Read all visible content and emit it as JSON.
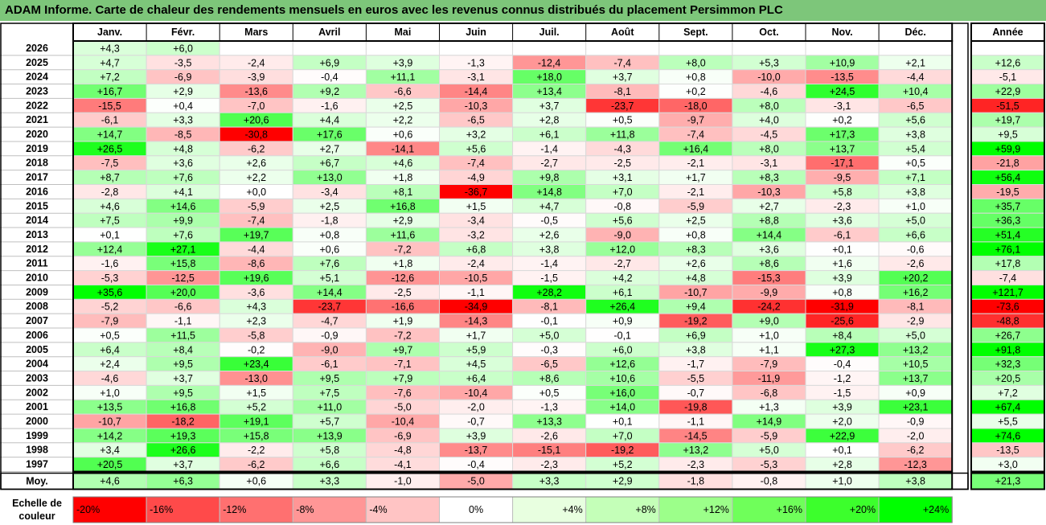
{
  "title": "ADAM Informe. Carte de chaleur des rendements mensuels en euros avec les revenus connus distribués du placement Persimmon PLC",
  "chart_data": {
    "type": "heatmap",
    "columns": [
      "Janv.",
      "Févr.",
      "Mars",
      "Avril",
      "Mai",
      "Juin",
      "Juil.",
      "Août",
      "Sept.",
      "Oct.",
      "Nov.",
      "Déc."
    ],
    "year_column_label": "Année",
    "rows": [
      {
        "label": "2026",
        "values": [
          "+4,3",
          "+6,0",
          "",
          "",
          "",
          "",
          "",
          "",
          "",
          "",
          "",
          ""
        ],
        "year": ""
      },
      {
        "label": "2025",
        "values": [
          "+4,7",
          "-3,5",
          "-2,4",
          "+6,9",
          "+3,9",
          "-1,3",
          "-12,4",
          "-7,4",
          "+8,0",
          "+5,3",
          "+10,9",
          "+2,1"
        ],
        "year": "+12,6"
      },
      {
        "label": "2024",
        "values": [
          "+7,2",
          "-6,9",
          "-3,9",
          "-0,4",
          "+11,1",
          "-3,1",
          "+18,0",
          "+3,7",
          "+0,8",
          "-10,0",
          "-13,5",
          "-4,4"
        ],
        "year": "-5,1"
      },
      {
        "label": "2023",
        "values": [
          "+16,7",
          "+2,9",
          "-13,6",
          "+9,2",
          "-6,6",
          "-14,4",
          "+13,4",
          "-8,1",
          "+0,2",
          "-4,6",
          "+24,5",
          "+10,4"
        ],
        "year": "+22,9"
      },
      {
        "label": "2022",
        "values": [
          "-15,5",
          "+0,4",
          "-7,0",
          "-1,6",
          "+2,5",
          "-10,3",
          "+3,7",
          "-23,7",
          "-18,0",
          "+8,0",
          "-3,1",
          "-6,5"
        ],
        "year": "-51,5"
      },
      {
        "label": "2021",
        "values": [
          "-6,1",
          "+3,3",
          "+20,6",
          "+4,4",
          "+2,2",
          "-6,5",
          "+2,8",
          "+0,5",
          "-9,7",
          "+4,0",
          "+0,2",
          "+5,6"
        ],
        "year": "+19,7"
      },
      {
        "label": "2020",
        "values": [
          "+14,7",
          "-8,5",
          "-30,8",
          "+17,6",
          "+0,6",
          "+3,2",
          "+6,1",
          "+11,8",
          "-7,4",
          "-4,5",
          "+17,3",
          "+3,8"
        ],
        "year": "+9,5"
      },
      {
        "label": "2019",
        "values": [
          "+26,5",
          "+4,8",
          "-6,2",
          "+2,7",
          "-14,1",
          "+5,6",
          "-1,4",
          "-4,3",
          "+16,4",
          "+8,0",
          "+13,7",
          "+5,4"
        ],
        "year": "+59,9"
      },
      {
        "label": "2018",
        "values": [
          "-7,5",
          "+3,6",
          "+2,6",
          "+6,7",
          "+4,6",
          "-7,4",
          "-2,7",
          "-2,5",
          "-2,1",
          "-3,1",
          "-17,1",
          "+0,5"
        ],
        "year": "-21,8"
      },
      {
        "label": "2017",
        "values": [
          "+8,7",
          "+7,6",
          "+2,2",
          "+13,0",
          "+1,8",
          "-4,9",
          "+9,8",
          "+3,1",
          "+1,7",
          "+8,3",
          "-9,5",
          "+7,1"
        ],
        "year": "+56,4"
      },
      {
        "label": "2016",
        "values": [
          "-2,8",
          "+4,1",
          "+0,0",
          "-3,4",
          "+8,1",
          "-36,7",
          "+14,8",
          "+7,0",
          "-2,1",
          "-10,3",
          "+5,8",
          "+3,8"
        ],
        "year": "-19,5"
      },
      {
        "label": "2015",
        "values": [
          "+4,6",
          "+14,6",
          "-5,9",
          "+2,5",
          "+16,8",
          "+1,5",
          "+4,7",
          "-0,8",
          "-5,9",
          "+2,7",
          "-2,3",
          "+1,0"
        ],
        "year": "+35,7"
      },
      {
        "label": "2014",
        "values": [
          "+7,5",
          "+9,9",
          "-7,4",
          "-1,8",
          "+2,9",
          "-3,4",
          "-0,5",
          "+5,6",
          "+2,5",
          "+8,8",
          "+3,6",
          "+5,0"
        ],
        "year": "+36,3"
      },
      {
        "label": "2013",
        "values": [
          "+0,1",
          "+7,6",
          "+19,7",
          "+0,8",
          "+11,6",
          "-3,2",
          "+2,6",
          "-9,0",
          "+0,8",
          "+14,4",
          "-6,1",
          "+6,6"
        ],
        "year": "+51,4"
      },
      {
        "label": "2012",
        "values": [
          "+12,4",
          "+27,1",
          "-4,4",
          "+0,6",
          "-7,2",
          "+6,8",
          "+3,8",
          "+12,0",
          "+8,3",
          "+3,6",
          "+0,1",
          "-0,6"
        ],
        "year": "+76,1"
      },
      {
        "label": "2011",
        "values": [
          "-1,6",
          "+15,8",
          "-8,6",
          "+7,6",
          "+1,8",
          "-2,4",
          "-1,4",
          "-2,7",
          "+2,6",
          "+8,6",
          "+1,6",
          "-2,6"
        ],
        "year": "+17,8"
      },
      {
        "label": "2010",
        "values": [
          "-5,3",
          "-12,5",
          "+19,6",
          "+5,1",
          "-12,6",
          "-10,5",
          "-1,5",
          "+4,2",
          "+4,8",
          "-15,3",
          "+3,9",
          "+20,2"
        ],
        "year": "-7,4"
      },
      {
        "label": "2009",
        "values": [
          "+35,6",
          "+20,0",
          "-3,6",
          "+14,4",
          "-2,5",
          "-1,1",
          "+28,2",
          "+6,1",
          "-10,7",
          "-9,9",
          "+0,8",
          "+16,2"
        ],
        "year": "+121,7"
      },
      {
        "label": "2008",
        "values": [
          "-5,2",
          "-6,6",
          "+4,3",
          "-23,7",
          "-16,6",
          "-34,9",
          "-8,1",
          "+26,4",
          "+9,4",
          "-24,2",
          "-31,9",
          "-8,1"
        ],
        "year": "-73,6"
      },
      {
        "label": "2007",
        "values": [
          "-7,9",
          "-1,1",
          "+2,3",
          "-4,7",
          "+1,9",
          "-14,3",
          "-0,1",
          "+0,9",
          "-19,2",
          "+9,0",
          "-25,6",
          "-2,9"
        ],
        "year": "-48,8"
      },
      {
        "label": "2006",
        "values": [
          "+0,5",
          "+11,5",
          "-5,8",
          "-0,9",
          "-7,2",
          "+1,7",
          "+5,0",
          "-0,1",
          "+6,9",
          "+1,0",
          "+8,4",
          "+5,0"
        ],
        "year": "+26,7"
      },
      {
        "label": "2005",
        "values": [
          "+6,4",
          "+8,4",
          "-0,2",
          "-9,0",
          "+9,7",
          "+5,9",
          "-0,3",
          "+6,0",
          "+3,8",
          "+1,1",
          "+27,3",
          "+13,2"
        ],
        "year": "+91,8"
      },
      {
        "label": "2004",
        "values": [
          "+2,4",
          "+9,5",
          "+23,4",
          "-6,1",
          "-7,1",
          "+4,5",
          "-6,5",
          "+12,6",
          "-1,7",
          "-7,9",
          "-0,4",
          "+10,5"
        ],
        "year": "+32,3"
      },
      {
        "label": "2003",
        "values": [
          "-4,6",
          "+3,7",
          "-13,0",
          "+9,5",
          "+7,9",
          "+6,4",
          "+8,6",
          "+10,6",
          "-5,5",
          "-11,9",
          "-1,2",
          "+13,7"
        ],
        "year": "+20,5"
      },
      {
        "label": "2002",
        "values": [
          "+1,0",
          "+9,5",
          "+1,5",
          "+7,5",
          "-7,6",
          "-10,4",
          "+0,5",
          "+16,0",
          "-0,7",
          "-6,8",
          "-1,5",
          "+0,9"
        ],
        "year": "+7,2"
      },
      {
        "label": "2001",
        "values": [
          "+13,5",
          "+16,8",
          "+5,2",
          "+11,0",
          "-5,0",
          "-2,0",
          "-1,3",
          "+14,0",
          "-19,8",
          "+1,3",
          "+3,9",
          "+23,1"
        ],
        "year": "+67,4"
      },
      {
        "label": "2000",
        "values": [
          "-10,7",
          "-18,2",
          "+19,1",
          "+5,7",
          "-10,4",
          "-0,7",
          "+13,3",
          "+0,1",
          "-1,1",
          "+14,9",
          "+2,0",
          "-0,9"
        ],
        "year": "+5,5"
      },
      {
        "label": "1999",
        "values": [
          "+14,2",
          "+19,3",
          "+15,8",
          "+13,9",
          "-6,9",
          "+3,9",
          "-2,6",
          "+7,0",
          "-14,5",
          "-5,9",
          "+22,9",
          "-2,0"
        ],
        "year": "+74,6"
      },
      {
        "label": "1998",
        "values": [
          "+3,4",
          "+26,6",
          "-2,2",
          "+5,8",
          "-4,8",
          "-13,7",
          "-15,1",
          "-19,2",
          "+13,2",
          "+5,0",
          "+0,1",
          "-6,2"
        ],
        "year": "-13,5"
      },
      {
        "label": "1997",
        "values": [
          "+20,5",
          "+3,7",
          "-6,2",
          "+6,6",
          "-4,1",
          "-0,4",
          "-2,3",
          "+5,2",
          "-2,3",
          "-5,3",
          "+2,8",
          "-12,3"
        ],
        "year": "+3,0"
      }
    ],
    "average": {
      "label": "Moy.",
      "values": [
        "+4,6",
        "+6,3",
        "+0,6",
        "+3,3",
        "-1,0",
        "-5,0",
        "+3,3",
        "+2,9",
        "-1,8",
        "-0,8",
        "+1,0",
        "+3,8"
      ],
      "year": "+21,3"
    },
    "scale": {
      "label": "Echelle de couleur",
      "items": [
        "-20%",
        "-16%",
        "-12%",
        "-8%",
        "-4%",
        "0%",
        "+4%",
        "+8%",
        "+12%",
        "+16%",
        "+20%",
        "+24%"
      ],
      "colors": [
        "#ff0000",
        "#ff4a4a",
        "#ff7070",
        "#ff9696",
        "#ffc4c4",
        "#ffffff",
        "#e8ffe0",
        "#c4ffb8",
        "#9cff8a",
        "#6fff5a",
        "#3cff2c",
        "#00ff00"
      ]
    },
    "colors": {
      "title_bg": "#7dc67a",
      "negative_max": "#ff0000",
      "positive_max": "#00ff00",
      "neutral": "#ffffff"
    }
  }
}
